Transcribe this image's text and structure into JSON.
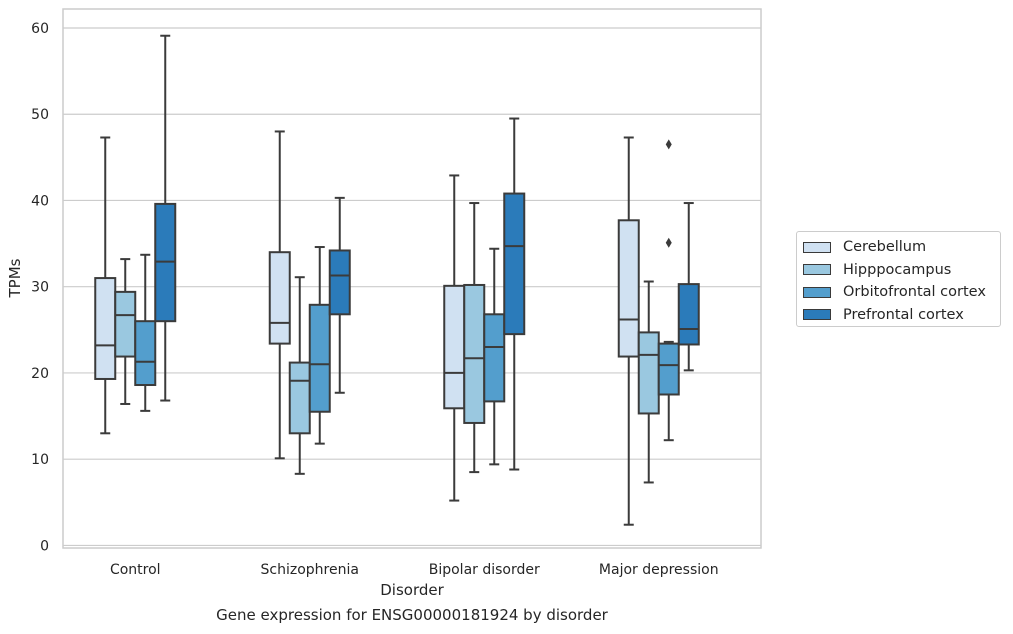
{
  "chart_data": {
    "type": "box",
    "title": "Gene expression for ENSG00000181924 by disorder",
    "xlabel": "Disorder",
    "ylabel": "TPMs",
    "ylim": [
      -0.3,
      62.2
    ],
    "yticks": [
      0,
      10,
      20,
      30,
      40,
      50,
      60
    ],
    "grid": true,
    "legend_position": "right",
    "categories": [
      "Control",
      "Schizophrenia",
      "Bipolar disorder",
      "Major depression"
    ],
    "series": [
      {
        "name": "Cerebellum",
        "color": "#d0e1f2",
        "boxes": [
          {
            "whislo": 13.0,
            "q1": 19.3,
            "med": 23.2,
            "q3": 31.0,
            "whishi": 47.3,
            "fliers": []
          },
          {
            "whislo": 10.1,
            "q1": 23.4,
            "med": 25.8,
            "q3": 34.0,
            "whishi": 48.0,
            "fliers": []
          },
          {
            "whislo": 5.2,
            "q1": 15.9,
            "med": 20.0,
            "q3": 30.1,
            "whishi": 42.9,
            "fliers": []
          },
          {
            "whislo": 2.4,
            "q1": 21.9,
            "med": 26.2,
            "q3": 37.7,
            "whishi": 47.3,
            "fliers": []
          }
        ]
      },
      {
        "name": "Hipppocampus",
        "color": "#9ac8e0",
        "boxes": [
          {
            "whislo": 16.4,
            "q1": 21.9,
            "med": 26.7,
            "q3": 29.4,
            "whishi": 33.2,
            "fliers": []
          },
          {
            "whislo": 8.3,
            "q1": 13.0,
            "med": 19.1,
            "q3": 21.2,
            "whishi": 31.1,
            "fliers": []
          },
          {
            "whislo": 8.5,
            "q1": 14.2,
            "med": 21.7,
            "q3": 30.2,
            "whishi": 39.7,
            "fliers": []
          },
          {
            "whislo": 7.3,
            "q1": 15.3,
            "med": 22.1,
            "q3": 24.7,
            "whishi": 30.6,
            "fliers": []
          }
        ]
      },
      {
        "name": "Orbitofrontal cortex",
        "color": "#539ecd",
        "boxes": [
          {
            "whislo": 15.6,
            "q1": 18.6,
            "med": 21.3,
            "q3": 26.0,
            "whishi": 33.7,
            "fliers": []
          },
          {
            "whislo": 11.8,
            "q1": 15.5,
            "med": 21.0,
            "q3": 27.9,
            "whishi": 34.6,
            "fliers": []
          },
          {
            "whislo": 9.4,
            "q1": 16.7,
            "med": 23.0,
            "q3": 26.8,
            "whishi": 34.4,
            "fliers": []
          },
          {
            "whislo": 12.2,
            "q1": 17.5,
            "med": 20.9,
            "q3": 23.4,
            "whishi": 23.6,
            "fliers": [
              35.1,
              46.5
            ]
          }
        ]
      },
      {
        "name": "Prefrontal cortex",
        "color": "#2b7bba",
        "boxes": [
          {
            "whislo": 16.8,
            "q1": 26.0,
            "med": 32.9,
            "q3": 39.6,
            "whishi": 59.1,
            "fliers": []
          },
          {
            "whislo": 17.7,
            "q1": 26.8,
            "med": 31.3,
            "q3": 34.2,
            "whishi": 40.3,
            "fliers": []
          },
          {
            "whislo": 8.8,
            "q1": 24.5,
            "med": 34.7,
            "q3": 40.8,
            "whishi": 49.5,
            "fliers": []
          },
          {
            "whislo": 20.3,
            "q1": 23.3,
            "med": 25.1,
            "q3": 30.3,
            "whishi": 39.7,
            "fliers": []
          }
        ]
      }
    ]
  }
}
